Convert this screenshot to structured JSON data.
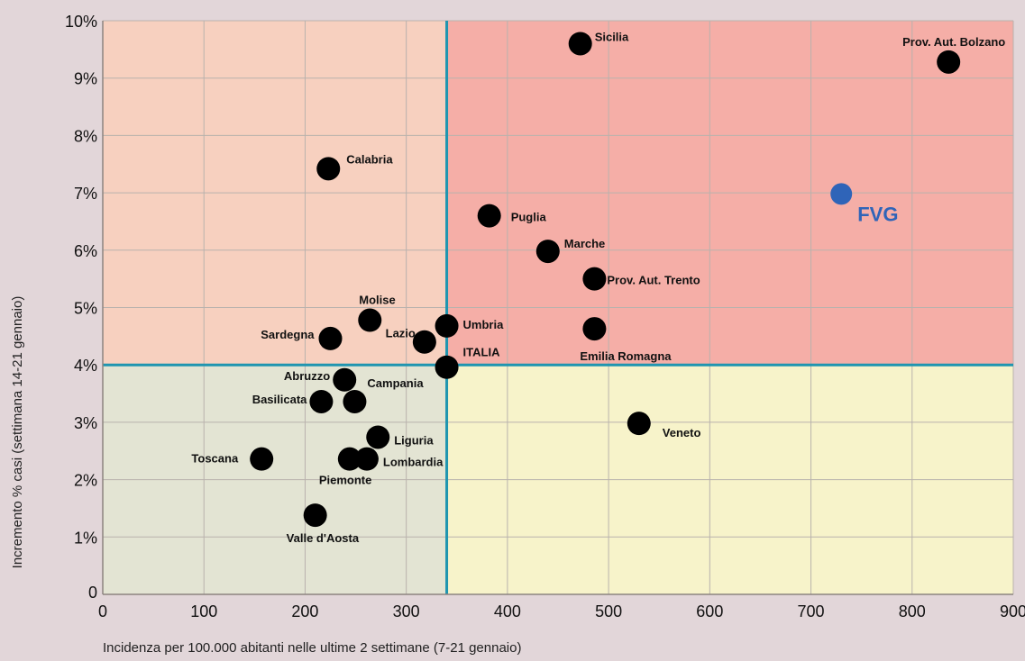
{
  "chart_data": {
    "type": "scatter",
    "xlabel": "Incidenza per 100.000 abitanti nelle ultime 2 settimane (7-21 gennaio)",
    "ylabel": "Incremento % casi (settimana 14-21 gennaio)",
    "xlim": [
      0,
      900
    ],
    "ylim": [
      0,
      10
    ],
    "x_ticks": [
      "0",
      "100",
      "200",
      "300",
      "400",
      "500",
      "600",
      "700",
      "800",
      "900"
    ],
    "y_ticks": [
      "0",
      "1%",
      "2%",
      "3%",
      "4%",
      "5%",
      "6%",
      "7%",
      "8%",
      "9%",
      "10%"
    ],
    "grid": true,
    "threshold": {
      "x": 340,
      "y": 4.0,
      "color": "#1f95b0"
    },
    "quadrant_colors": {
      "top_left": "#f7d0bf",
      "top_right": "#f5aea7",
      "bottom_left": "#e3e4d3",
      "bottom_right": "#f7f3ca"
    },
    "point_color": "#000000",
    "highlight_color": "#2f64b8",
    "points": [
      {
        "name": "Sicilia",
        "x": 472,
        "y": 9.6
      },
      {
        "name": "Prov. Aut. Bolzano",
        "x": 836,
        "y": 9.28
      },
      {
        "name": "Calabria",
        "x": 223,
        "y": 7.42
      },
      {
        "name": "FVG",
        "x": 730,
        "y": 6.98,
        "highlight": true
      },
      {
        "name": "Puglia",
        "x": 382,
        "y": 6.6
      },
      {
        "name": "Marche",
        "x": 440,
        "y": 5.98
      },
      {
        "name": "Prov. Aut. Trento",
        "x": 486,
        "y": 5.5
      },
      {
        "name": "Molise",
        "x": 264,
        "y": 4.78
      },
      {
        "name": "Umbria",
        "x": 340,
        "y": 4.68
      },
      {
        "name": "Emilia Romagna",
        "x": 486,
        "y": 4.63
      },
      {
        "name": "Sardegna",
        "x": 225,
        "y": 4.46
      },
      {
        "name": "Lazio",
        "x": 318,
        "y": 4.4
      },
      {
        "name": "ITALIA",
        "x": 340,
        "y": 3.96
      },
      {
        "name": "Abruzzo",
        "x": 239,
        "y": 3.74
      },
      {
        "name": "Basilicata",
        "x": 216,
        "y": 3.36
      },
      {
        "name": "Campania",
        "x": 249,
        "y": 3.36
      },
      {
        "name": "Veneto",
        "x": 530,
        "y": 2.98
      },
      {
        "name": "Liguria",
        "x": 272,
        "y": 2.74
      },
      {
        "name": "Toscana",
        "x": 157,
        "y": 2.36
      },
      {
        "name": "Piemonte",
        "x": 244,
        "y": 2.36
      },
      {
        "name": "Lombardia",
        "x": 261,
        "y": 2.36
      },
      {
        "name": "Valle d'Aosta",
        "x": 210,
        "y": 1.38
      }
    ]
  }
}
